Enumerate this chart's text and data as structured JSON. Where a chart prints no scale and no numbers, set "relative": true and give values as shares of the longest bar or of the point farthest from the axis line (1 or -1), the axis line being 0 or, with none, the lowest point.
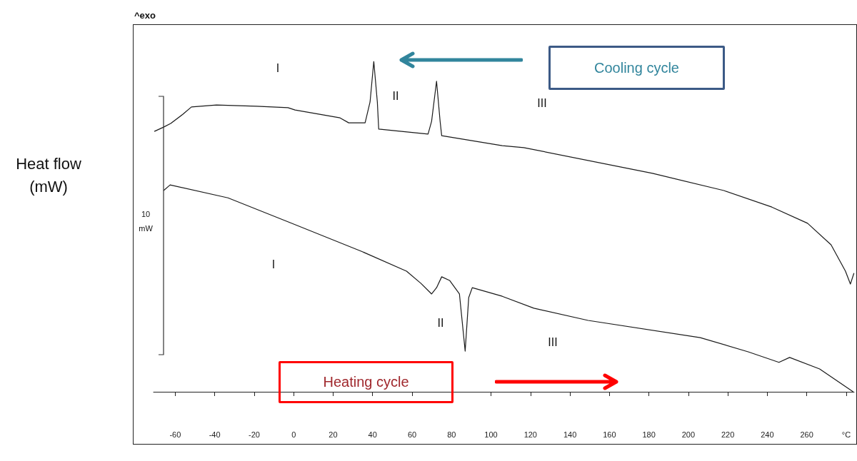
{
  "chart_data": {
    "type": "line",
    "relative": true,
    "ylabel": "Heat flow (mW)",
    "marker": "none",
    "xlim": [
      -71,
      284
    ],
    "xticks": [
      -60,
      -40,
      -20,
      0,
      20,
      40,
      60,
      80,
      100,
      120,
      140,
      160,
      180,
      200,
      220,
      240,
      260,
      {
        "value": 280,
        "label": "°C"
      }
    ],
    "series": [
      {
        "color": "#1a1a1a",
        "x": [
          -70.6,
          -65.9,
          -62.3,
          -56.1,
          -51.8,
          -39.1,
          -18.8,
          -2.9,
          0.7,
          23.5,
          27.9,
          36.2,
          38.7,
          40.6,
          42.4,
          43.1,
          68.1,
          69.9,
          72.4,
          74.2,
          75.0,
          105.7,
          116.6,
          181.8,
          218,
          242.3,
          260.4,
          272.3,
          279.6,
          282.1,
          283.9
        ],
        "values": [
          0.788,
          0.801,
          0.812,
          0.84,
          0.862,
          0.868,
          0.864,
          0.86,
          0.853,
          0.829,
          0.814,
          0.814,
          0.877,
          1,
          0.877,
          0.795,
          0.78,
          0.819,
          0.94,
          0.819,
          0.775,
          0.745,
          0.739,
          0.661,
          0.609,
          0.559,
          0.51,
          0.445,
          0.365,
          0.326,
          0.359
        ]
      },
      {
        "color": "#1a1a1a",
        "x": [
          -65.9,
          -62.6,
          -33.3,
          -1.8,
          34.4,
          57.2,
          64.5,
          69.9,
          72.4,
          75.0,
          79.0,
          84.0,
          86.9,
          88.7,
          90.5,
          105.7,
          121.7,
          149.2,
          206,
          230.3,
          245.9,
          251.3,
          266.5,
          283.5
        ],
        "values": [
          0.609,
          0.626,
          0.587,
          0.512,
          0.425,
          0.365,
          0.328,
          0.296,
          0.315,
          0.348,
          0.337,
          0.296,
          0.123,
          0.285,
          0.315,
          0.289,
          0.253,
          0.216,
          0.164,
          0.121,
          0.089,
          0.104,
          0.069,
          0
        ]
      }
    ],
    "annotations": [
      "^exo",
      "10 mW",
      "Cooling cycle",
      "Heating cycle",
      "I",
      "II",
      "III",
      "I",
      "II",
      "III"
    ]
  }
}
